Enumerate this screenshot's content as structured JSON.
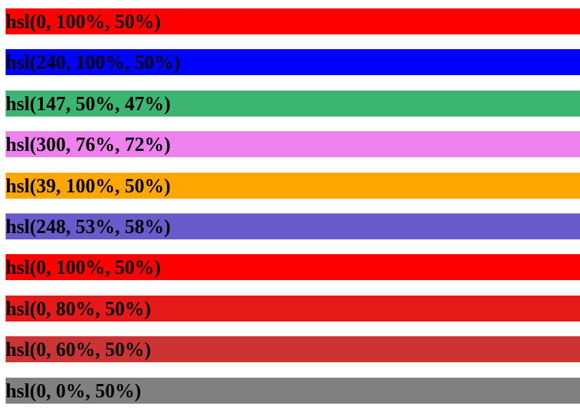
{
  "items": [
    "hsl(0, 100%, 50%)",
    "hsl(240, 100%, 50%)",
    "hsl(147, 50%, 47%)",
    "hsl(300, 76%, 72%)",
    "hsl(39, 100%, 50%)",
    "hsl(248, 53%, 58%)",
    "hsl(0, 100%, 50%)",
    "hsl(0, 80%, 50%)",
    "hsl(0, 60%, 50%)",
    "hsl(0, 0%, 50%)"
  ]
}
